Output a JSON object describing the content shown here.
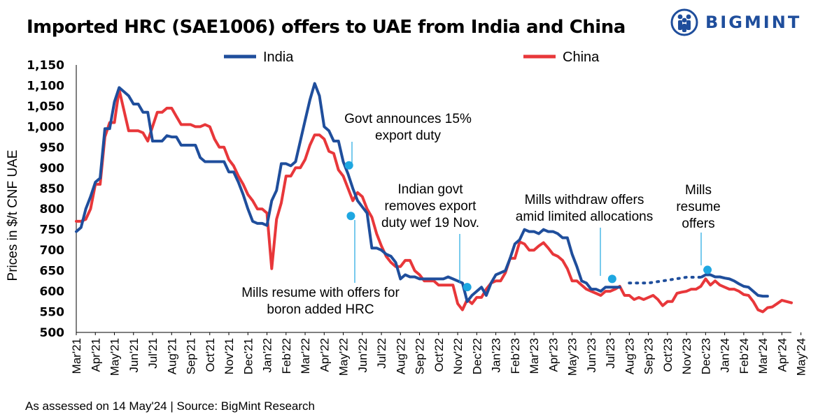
{
  "title": "Imported HRC (SAE1006) offers to UAE from India and China",
  "brand": {
    "name": "BIGMINT",
    "logo_icon": "people-circle-logo-icon",
    "color": "#1f4e9c"
  },
  "footer": "As assessed on 14 May'24 | Source: BigMint Research",
  "chart_data": {
    "type": "line",
    "title": "Imported HRC (SAE1006) offers to UAE from India and China",
    "ylabel": "Prices in $/t CNF UAE",
    "xlabel": "",
    "ylim": [
      500,
      1150
    ],
    "yticks": [
      500,
      550,
      600,
      650,
      700,
      750,
      800,
      850,
      900,
      950,
      1000,
      1050,
      1100,
      1150
    ],
    "ytick_labels": [
      "500",
      "550",
      "600",
      "650",
      "700",
      "750",
      "800",
      "850",
      "900",
      "950",
      "1,000",
      "1,050",
      "1,100",
      "1,150"
    ],
    "x_tick_labels": [
      "Mar'21",
      "Apr'21",
      "May'21",
      "Jun'21",
      "Jul'21",
      "Aug'21",
      "Sep'21",
      "Oct'21",
      "Nov'21",
      "Dec'21",
      "Jan'22",
      "Feb'22",
      "Mar'22",
      "Apr'22",
      "May'22",
      "Jun'22",
      "Jul'22",
      "Aug'22",
      "Sep'22",
      "Oct'22",
      "Nov'22",
      "Dec'22",
      "Jan'23",
      "Feb'23",
      "Mar'23",
      "Apr'23",
      "May'23",
      "Jun'23",
      "Jul'23",
      "Aug'23",
      "Sep'23",
      "Oct'23",
      "Nov'23",
      "Dec'23",
      "Jan'24",
      "Feb'24",
      "Mar'24",
      "Apr'24",
      "May'24"
    ],
    "x_unit": "months since Mar'21",
    "grid": false,
    "legend_position": "top",
    "series": [
      {
        "name": "India",
        "color": "#1f4e9c",
        "points": [
          [
            0,
            745
          ],
          [
            0.25,
            755
          ],
          [
            0.5,
            800
          ],
          [
            0.75,
            830
          ],
          [
            1,
            865
          ],
          [
            1.25,
            875
          ],
          [
            1.5,
            995
          ],
          [
            1.75,
            995
          ],
          [
            2,
            1060
          ],
          [
            2.25,
            1095
          ],
          [
            2.5,
            1085
          ],
          [
            2.75,
            1075
          ],
          [
            3,
            1055
          ],
          [
            3.25,
            1055
          ],
          [
            3.5,
            1035
          ],
          [
            3.75,
            1035
          ],
          [
            4,
            965
          ],
          [
            4.25,
            965
          ],
          [
            4.5,
            965
          ],
          [
            4.75,
            978
          ],
          [
            5,
            975
          ],
          [
            5.25,
            975
          ],
          [
            5.5,
            955
          ],
          [
            5.75,
            955
          ],
          [
            6,
            955
          ],
          [
            6.25,
            955
          ],
          [
            6.5,
            925
          ],
          [
            6.75,
            915
          ],
          [
            7,
            915
          ],
          [
            7.25,
            915
          ],
          [
            7.5,
            915
          ],
          [
            7.75,
            915
          ],
          [
            8,
            890
          ],
          [
            8.25,
            890
          ],
          [
            8.5,
            865
          ],
          [
            8.75,
            835
          ],
          [
            9,
            800
          ],
          [
            9.25,
            770
          ],
          [
            9.5,
            765
          ],
          [
            9.75,
            765
          ],
          [
            10,
            760
          ],
          [
            10.25,
            820
          ],
          [
            10.5,
            845
          ],
          [
            10.75,
            910
          ],
          [
            11,
            910
          ],
          [
            11.25,
            905
          ],
          [
            11.5,
            915
          ],
          [
            11.75,
            965
          ],
          [
            12,
            1015
          ],
          [
            12.25,
            1065
          ],
          [
            12.5,
            1105
          ],
          [
            12.75,
            1075
          ],
          [
            13,
            1000
          ],
          [
            13.25,
            990
          ],
          [
            13.5,
            965
          ],
          [
            13.75,
            965
          ],
          [
            14,
            915
          ],
          [
            14.25,
            885
          ],
          [
            14.5,
            850
          ],
          [
            14.75,
            820
          ],
          [
            15,
            805
          ],
          [
            15.25,
            790
          ],
          [
            15.5,
            705
          ],
          [
            15.75,
            705
          ],
          [
            16,
            700
          ],
          [
            16.25,
            690
          ],
          [
            16.5,
            685
          ],
          [
            16.75,
            670
          ],
          [
            17,
            630
          ],
          [
            17.25,
            640
          ],
          [
            17.5,
            635
          ],
          [
            17.75,
            635
          ],
          [
            18,
            630
          ],
          [
            18.25,
            630
          ],
          [
            18.5,
            630
          ],
          [
            18.75,
            630
          ],
          [
            19,
            630
          ],
          [
            19.25,
            630
          ],
          [
            19.5,
            635
          ],
          [
            19.75,
            630
          ],
          [
            20,
            625
          ],
          [
            20.25,
            620
          ],
          [
            20.5,
            575
          ],
          [
            20.75,
            590
          ],
          [
            21,
            600
          ],
          [
            21.25,
            610
          ],
          [
            21.5,
            590
          ],
          [
            21.75,
            620
          ],
          [
            22,
            640
          ],
          [
            22.25,
            645
          ],
          [
            22.5,
            650
          ],
          [
            22.75,
            680
          ],
          [
            23,
            715
          ],
          [
            23.25,
            725
          ],
          [
            23.5,
            750
          ],
          [
            23.75,
            745
          ],
          [
            24,
            745
          ],
          [
            24.25,
            740
          ],
          [
            24.5,
            750
          ],
          [
            24.75,
            745
          ],
          [
            25,
            745
          ],
          [
            25.25,
            740
          ],
          [
            25.5,
            730
          ],
          [
            25.75,
            730
          ],
          [
            26,
            690
          ],
          [
            26.25,
            660
          ],
          [
            26.5,
            625
          ],
          [
            26.75,
            620
          ],
          [
            27,
            605
          ],
          [
            27.25,
            605
          ],
          [
            27.5,
            600
          ],
          [
            27.75,
            610
          ],
          [
            28,
            610
          ],
          [
            28.25,
            610
          ],
          [
            28.5,
            610
          ]
        ],
        "dotted_points": [
          [
            29,
            620
          ],
          [
            30,
            620
          ],
          [
            31,
            627
          ],
          [
            32,
            634
          ],
          [
            32.8,
            634
          ]
        ],
        "points_late": [
          [
            32.8,
            635
          ],
          [
            33,
            640
          ],
          [
            33.25,
            640
          ],
          [
            33.5,
            635
          ],
          [
            33.75,
            635
          ],
          [
            34,
            632
          ],
          [
            34.25,
            630
          ],
          [
            34.5,
            625
          ],
          [
            34.75,
            618
          ],
          [
            35,
            612
          ],
          [
            35.25,
            610
          ],
          [
            35.5,
            600
          ],
          [
            35.75,
            590
          ],
          [
            36,
            588
          ],
          [
            36.25,
            588
          ]
        ]
      },
      {
        "name": "China",
        "color": "#e8373a",
        "points": [
          [
            0,
            770
          ],
          [
            0.25,
            770
          ],
          [
            0.5,
            775
          ],
          [
            0.75,
            800
          ],
          [
            1,
            860
          ],
          [
            1.25,
            860
          ],
          [
            1.5,
            975
          ],
          [
            1.75,
            1010
          ],
          [
            2,
            1010
          ],
          [
            2.25,
            1090
          ],
          [
            2.5,
            1040
          ],
          [
            2.75,
            990
          ],
          [
            3,
            990
          ],
          [
            3.25,
            990
          ],
          [
            3.5,
            985
          ],
          [
            3.75,
            965
          ],
          [
            4,
            1000
          ],
          [
            4.25,
            1035
          ],
          [
            4.5,
            1035
          ],
          [
            4.75,
            1045
          ],
          [
            5,
            1045
          ],
          [
            5.25,
            1025
          ],
          [
            5.5,
            1005
          ],
          [
            5.75,
            1005
          ],
          [
            6,
            1005
          ],
          [
            6.25,
            1000
          ],
          [
            6.5,
            1000
          ],
          [
            6.75,
            1005
          ],
          [
            7,
            1000
          ],
          [
            7.25,
            970
          ],
          [
            7.5,
            950
          ],
          [
            7.75,
            950
          ],
          [
            8,
            920
          ],
          [
            8.25,
            905
          ],
          [
            8.5,
            880
          ],
          [
            8.75,
            860
          ],
          [
            9,
            835
          ],
          [
            9.25,
            820
          ],
          [
            9.5,
            800
          ],
          [
            9.75,
            800
          ],
          [
            10,
            790
          ],
          [
            10.25,
            655
          ],
          [
            10.5,
            775
          ],
          [
            10.75,
            815
          ],
          [
            11,
            880
          ],
          [
            11.25,
            880
          ],
          [
            11.5,
            900
          ],
          [
            11.75,
            900
          ],
          [
            12,
            920
          ],
          [
            12.25,
            955
          ],
          [
            12.5,
            980
          ],
          [
            12.75,
            980
          ],
          [
            13,
            970
          ],
          [
            13.25,
            940
          ],
          [
            13.5,
            935
          ],
          [
            13.75,
            895
          ],
          [
            14,
            880
          ],
          [
            14.25,
            850
          ],
          [
            14.5,
            820
          ],
          [
            14.75,
            840
          ],
          [
            15,
            830
          ],
          [
            15.25,
            800
          ],
          [
            15.5,
            780
          ],
          [
            15.75,
            740
          ],
          [
            16,
            710
          ],
          [
            16.25,
            685
          ],
          [
            16.5,
            670
          ],
          [
            16.75,
            660
          ],
          [
            17,
            660
          ],
          [
            17.25,
            675
          ],
          [
            17.5,
            675
          ],
          [
            17.75,
            650
          ],
          [
            18,
            640
          ],
          [
            18.25,
            625
          ],
          [
            18.5,
            625
          ],
          [
            18.75,
            625
          ],
          [
            19,
            615
          ],
          [
            19.25,
            615
          ],
          [
            19.5,
            615
          ],
          [
            19.75,
            615
          ],
          [
            20,
            570
          ],
          [
            20.25,
            555
          ],
          [
            20.5,
            580
          ],
          [
            20.75,
            570
          ],
          [
            21,
            585
          ],
          [
            21.25,
            585
          ],
          [
            21.5,
            605
          ],
          [
            21.75,
            620
          ],
          [
            22,
            625
          ],
          [
            22.25,
            625
          ],
          [
            22.5,
            645
          ],
          [
            22.75,
            680
          ],
          [
            23,
            680
          ],
          [
            23.25,
            720
          ],
          [
            23.5,
            715
          ],
          [
            23.75,
            700
          ],
          [
            24,
            700
          ],
          [
            24.25,
            710
          ],
          [
            24.5,
            718
          ],
          [
            24.75,
            705
          ],
          [
            25,
            690
          ],
          [
            25.25,
            685
          ],
          [
            25.5,
            675
          ],
          [
            25.75,
            655
          ],
          [
            26,
            625
          ],
          [
            26.25,
            625
          ],
          [
            26.5,
            615
          ],
          [
            26.75,
            605
          ],
          [
            27,
            600
          ],
          [
            27.25,
            595
          ],
          [
            27.5,
            590
          ],
          [
            27.75,
            600
          ],
          [
            28,
            600
          ],
          [
            28.25,
            605
          ],
          [
            28.5,
            612
          ],
          [
            28.75,
            590
          ],
          [
            29,
            590
          ],
          [
            29.25,
            580
          ],
          [
            29.5,
            585
          ],
          [
            29.75,
            580
          ],
          [
            30,
            585
          ],
          [
            30.25,
            590
          ],
          [
            30.5,
            580
          ],
          [
            30.75,
            565
          ],
          [
            31,
            575
          ],
          [
            31.25,
            575
          ],
          [
            31.5,
            595
          ],
          [
            31.75,
            598
          ],
          [
            32,
            600
          ],
          [
            32.25,
            605
          ],
          [
            32.5,
            605
          ],
          [
            32.75,
            612
          ],
          [
            33,
            630
          ],
          [
            33.25,
            615
          ],
          [
            33.5,
            625
          ],
          [
            33.75,
            615
          ],
          [
            34,
            610
          ],
          [
            34.25,
            605
          ],
          [
            34.5,
            605
          ],
          [
            34.75,
            600
          ],
          [
            35,
            592
          ],
          [
            35.25,
            590
          ],
          [
            35.5,
            575
          ],
          [
            35.75,
            555
          ],
          [
            36,
            550
          ],
          [
            36.25,
            560
          ],
          [
            36.5,
            562
          ],
          [
            36.75,
            570
          ],
          [
            37,
            578
          ],
          [
            37.25,
            575
          ],
          [
            37.5,
            572
          ]
        ]
      }
    ],
    "annotations": [
      {
        "text": [
          "Govt announces 15%",
          "export duty"
        ],
        "marker": [
          14.3,
          906
        ],
        "leader": true
      },
      {
        "text": [
          "Mills resume with offers for",
          "boron added HRC"
        ],
        "marker": [
          14.4,
          783
        ],
        "leader": true
      },
      {
        "text": [
          "Indian govt",
          "removes export",
          "duty wef 19 Nov."
        ],
        "marker": [
          20.5,
          610
        ],
        "leader": true
      },
      {
        "text": [
          "Mills withdraw offers",
          "amid limited allocations"
        ],
        "marker": [
          28.1,
          630
        ],
        "leader": true
      },
      {
        "text": [
          "Mills",
          "resume",
          "offers"
        ],
        "marker": [
          33.1,
          652
        ],
        "leader": true
      }
    ],
    "marker_color": "#1ea7e1"
  }
}
